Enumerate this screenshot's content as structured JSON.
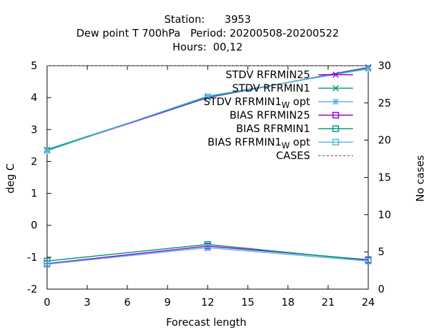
{
  "chart_data": {
    "type": "line",
    "title_lines": [
      "Station:      3953",
      "Dew point T 700hPa   Period: 20200508-20200522",
      "Hours:  00,12"
    ],
    "xlabel": "Forecast length",
    "ylabel": "deg C",
    "y2label": "No cases",
    "x_ticks": [
      0,
      3,
      6,
      9,
      12,
      15,
      18,
      21,
      24
    ],
    "y_ticks": [
      -2,
      -1,
      0,
      1,
      2,
      3,
      4,
      5
    ],
    "y2_ticks": [
      0,
      5,
      10,
      15,
      20,
      25,
      30
    ],
    "xlim": [
      0,
      24
    ],
    "ylim": [
      -2,
      5
    ],
    "y2lim": [
      0,
      30
    ],
    "grid": false,
    "legend_position": "top-right",
    "series": [
      {
        "name": "STDV RFRMIN25",
        "color": "#9400d3",
        "marker": "x",
        "dash": false,
        "axis": "y",
        "x": [
          0,
          12,
          24
        ],
        "values": [
          2.35,
          4.0,
          4.95
        ]
      },
      {
        "name": "STDV RFRMIN1",
        "color": "#009e73",
        "marker": "x",
        "dash": false,
        "axis": "y",
        "x": [
          0,
          12,
          24
        ],
        "values": [
          2.37,
          4.02,
          4.93
        ]
      },
      {
        "name": "STDV RFRMIN1_W opt",
        "color": "#56b4e9",
        "marker": "star",
        "dash": false,
        "axis": "y",
        "x": [
          0,
          12,
          24
        ],
        "values": [
          2.33,
          4.05,
          4.9
        ]
      },
      {
        "name": "BIAS RFRMIN25",
        "color": "#9400d3",
        "marker": "square",
        "dash": false,
        "axis": "y",
        "x": [
          0,
          12,
          24
        ],
        "values": [
          -1.2,
          -0.65,
          -1.08
        ]
      },
      {
        "name": "BIAS RFRMIN1",
        "color": "#009e73",
        "marker": "square",
        "dash": false,
        "axis": "y",
        "x": [
          0,
          12,
          24
        ],
        "values": [
          -1.12,
          -0.6,
          -1.1
        ]
      },
      {
        "name": "BIAS RFRMIN1_W opt",
        "color": "#56b4e9",
        "marker": "square",
        "dash": false,
        "axis": "y",
        "x": [
          0,
          12,
          24
        ],
        "values": [
          -1.22,
          -0.7,
          -1.12
        ]
      },
      {
        "name": "CASES",
        "color": "#808080",
        "marker": "none",
        "dash": true,
        "axis": "y2",
        "x": [
          0,
          12,
          24
        ],
        "values": [
          30,
          30,
          30
        ]
      }
    ]
  }
}
